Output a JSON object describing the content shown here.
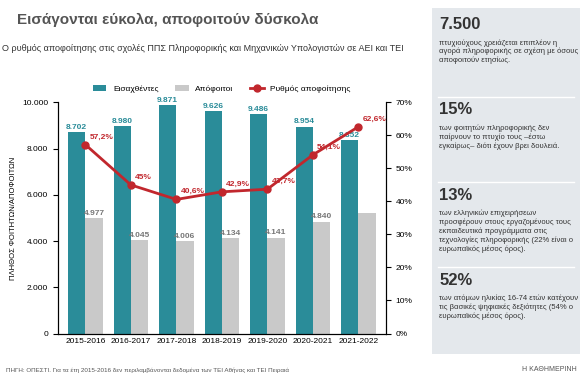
{
  "chart_data": {
    "type": "bar",
    "title": "Εισάγονται εύκολα, αποφοιτούν δύσκολα",
    "subtitle": "Ο ρυθμός αποφοίτησης στις σχολές ΠΠΣ Πληροφορικής και Μηχανικών Υπολογιστών σε ΑΕΙ και ΤΕΙ",
    "y_label": "ΠΛΗΘΟΣ ΦΟΙΤΗΤΩΝ/ΑΠΟΦΟΙΤΩΝ",
    "source": "ΠΗΓΗ: ΟΠΕΣΤΙ. Για τα έτη 2015-2016 δεν περιλαμβάνονται δεδομένα των ΤΕΙ Αθήνας και ΤΕΙ Πειραιά",
    "credit": "Η ΚΑΘΗΜΕΡΙΝΗ",
    "categories": [
      "2015-2016",
      "2016-2017",
      "2017-2018",
      "2018-2019",
      "2019-2020",
      "2020-2021",
      "2021-2022"
    ],
    "series": [
      {
        "name": "Εισαχθέντες",
        "type": "bar",
        "color": "#2a8c99",
        "values": [
          8702,
          8980,
          9871,
          9626,
          9486,
          8954,
          8352
        ],
        "value_labels": [
          "8.702",
          "8.980",
          "9.871",
          "9.626",
          "9.486",
          "8.954",
          "8.352"
        ]
      },
      {
        "name": "Απόφοιτοι",
        "type": "bar",
        "color": "#c9c9c9",
        "values": [
          4977,
          4045,
          4006,
          4134,
          4141,
          4840,
          5200
        ],
        "value_labels": [
          "4.977",
          "4.045",
          "4.006",
          "4.134",
          "4.141",
          "4.840",
          null
        ]
      },
      {
        "name": "Ρυθμός αποφοίτησης",
        "type": "line",
        "axis": "y2",
        "color": "#c1272d",
        "marker": "circle",
        "values": [
          57.2,
          45,
          40.6,
          42.9,
          43.7,
          54.1,
          62.6
        ],
        "value_labels": [
          "57,2%",
          "45%",
          "40,6%",
          "42,9%",
          "43,7%",
          "54,1%",
          "62,6%"
        ]
      }
    ],
    "ylim": [
      0,
      10000
    ],
    "yticks": [
      0,
      {
        "value": 2000,
        "label": "2.000"
      },
      {
        "value": 4000,
        "label": "4.000"
      },
      {
        "value": 6000,
        "label": "6.000"
      },
      {
        "value": 8000,
        "label": "8.000"
      },
      {
        "value": 10000,
        "label": "10.000"
      }
    ],
    "y2lim": [
      0,
      70
    ],
    "y2ticks": [
      {
        "value": 0,
        "label": "0%"
      },
      {
        "value": 10,
        "label": "10%"
      },
      {
        "value": 20,
        "label": "20%"
      },
      {
        "value": 30,
        "label": "30%"
      },
      {
        "value": 40,
        "label": "40%"
      },
      {
        "value": 50,
        "label": "50%"
      },
      {
        "value": 60,
        "label": "60%"
      },
      {
        "value": 70,
        "label": "70%"
      }
    ],
    "data_labels": true,
    "legend": "top",
    "grid": false
  },
  "facts": [
    {
      "number": "7.500",
      "text": "πτυχιούχους χρειάζεται επιπλέον η αγορά πληροφορικής σε σχέση με όσους αποφοιτούν ετησίως."
    },
    {
      "number": "15%",
      "text": "των φοιτητών πληροφορικής δεν παίρνουν το πτυχίο τους –έστω εγκαίρως– διότι έχουν βρει δουλειά."
    },
    {
      "number": "13%",
      "text": "των ελληνικών επιχειρήσεων προσφέρουν στους εργαζομένους τους εκπαιδευτικά προγράμματα στις τεχνολογίες πληροφορικής (22% είναι ο ευρωπαϊκός μέσος όρος)."
    },
    {
      "number": "52%",
      "text": "των ατόμων ηλικίας 16-74 ετών κατέχουν τις βασικές ψηφιακές δεξιότητες (54% ο ευρωπαϊκός μέσος όρος)."
    }
  ]
}
